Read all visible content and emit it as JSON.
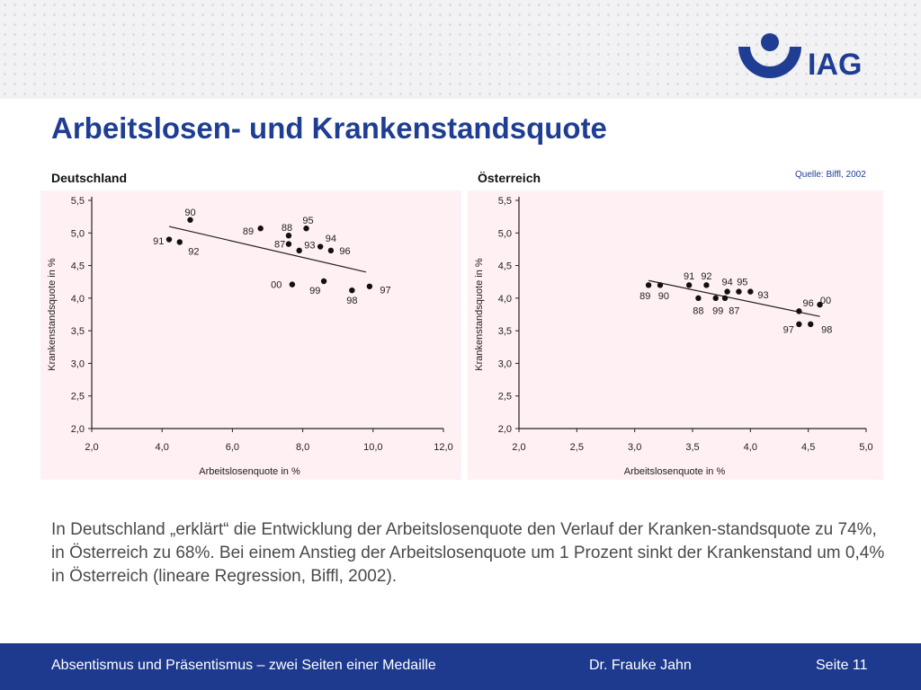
{
  "header": {
    "title": "Arbeitslosen- und Krankenstandsquote",
    "logo_text": "IAG",
    "brand_color": "#1f3e93"
  },
  "source_note": "Quelle: Biffl, 2002",
  "chart_data": [
    {
      "type": "scatter",
      "panel_label": "Deutschland",
      "xlabel": "Arbeitslosenquote in %",
      "ylabel": "Krankenstandsquote in %",
      "xlim": [
        2.0,
        12.0
      ],
      "ylim": [
        2.0,
        5.5
      ],
      "xticks": [
        2.0,
        4.0,
        6.0,
        8.0,
        10.0,
        12.0
      ],
      "xtick_labels": [
        "2,0",
        "4,0",
        "6,0",
        "8,0",
        "10,0",
        "12,0"
      ],
      "yticks": [
        2.0,
        2.5,
        3.0,
        3.5,
        4.0,
        4.5,
        5.0,
        5.5
      ],
      "ytick_labels": [
        "2,0",
        "2,5",
        "3,0",
        "3,5",
        "4,0",
        "4,5",
        "5,0",
        "5,5"
      ],
      "points": [
        {
          "label": "90",
          "x": 4.8,
          "y": 5.2,
          "lx": 0.0,
          "ly": 0.12
        },
        {
          "label": "91",
          "x": 4.2,
          "y": 4.9,
          "lx": -0.3,
          "ly": -0.02
        },
        {
          "label": "92",
          "x": 4.5,
          "y": 4.86,
          "lx": 0.4,
          "ly": -0.14
        },
        {
          "label": "89",
          "x": 6.8,
          "y": 5.07,
          "lx": -0.35,
          "ly": -0.04
        },
        {
          "label": "88",
          "x": 7.6,
          "y": 4.96,
          "lx": -0.05,
          "ly": 0.13
        },
        {
          "label": "87",
          "x": 7.6,
          "y": 4.83,
          "lx": -0.25,
          "ly": 0.0
        },
        {
          "label": "95",
          "x": 8.1,
          "y": 5.07,
          "lx": 0.05,
          "ly": 0.13
        },
        {
          "label": "93",
          "x": 7.9,
          "y": 4.73,
          "lx": 0.3,
          "ly": 0.09
        },
        {
          "label": "94",
          "x": 8.5,
          "y": 4.79,
          "lx": 0.3,
          "ly": 0.13
        },
        {
          "label": "96",
          "x": 8.8,
          "y": 4.73,
          "lx": 0.4,
          "ly": 0.0
        },
        {
          "label": "00",
          "x": 7.7,
          "y": 4.21,
          "lx": -0.45,
          "ly": 0.0
        },
        {
          "label": "99",
          "x": 8.6,
          "y": 4.26,
          "lx": -0.25,
          "ly": -0.14
        },
        {
          "label": "98",
          "x": 9.4,
          "y": 4.12,
          "lx": 0.0,
          "ly": -0.15
        },
        {
          "label": "97",
          "x": 9.9,
          "y": 4.18,
          "lx": 0.45,
          "ly": -0.05
        }
      ],
      "trendline": [
        {
          "x": 4.2,
          "y": 5.1
        },
        {
          "x": 9.8,
          "y": 4.4
        }
      ]
    },
    {
      "type": "scatter",
      "panel_label": "Österreich",
      "xlabel": "Arbeitslosenquote in %",
      "ylabel": "Krankenstandsquote in %",
      "xlim": [
        2.0,
        5.0
      ],
      "ylim": [
        2.0,
        5.5
      ],
      "xticks": [
        2.0,
        2.5,
        3.0,
        3.5,
        4.0,
        4.5,
        5.0
      ],
      "xtick_labels": [
        "2,0",
        "2,5",
        "3,0",
        "3,5",
        "4,0",
        "4,5",
        "5,0"
      ],
      "yticks": [
        2.0,
        2.5,
        3.0,
        3.5,
        4.0,
        4.5,
        5.0,
        5.5
      ],
      "ytick_labels": [
        "2,0",
        "2,5",
        "3,0",
        "3,5",
        "4,0",
        "4,5",
        "5,0",
        "5,5"
      ],
      "points": [
        {
          "label": "89",
          "x": 3.12,
          "y": 4.2,
          "lx": -0.03,
          "ly": -0.16
        },
        {
          "label": "90",
          "x": 3.22,
          "y": 4.2,
          "lx": 0.03,
          "ly": -0.16
        },
        {
          "label": "91",
          "x": 3.47,
          "y": 4.2,
          "lx": 0.0,
          "ly": 0.14
        },
        {
          "label": "92",
          "x": 3.62,
          "y": 4.2,
          "lx": 0.0,
          "ly": 0.14
        },
        {
          "label": "88",
          "x": 3.55,
          "y": 4.0,
          "lx": 0.0,
          "ly": -0.19
        },
        {
          "label": "99",
          "x": 3.7,
          "y": 4.0,
          "lx": 0.02,
          "ly": -0.19
        },
        {
          "label": "87",
          "x": 3.78,
          "y": 4.0,
          "lx": 0.08,
          "ly": -0.19
        },
        {
          "label": "94",
          "x": 3.8,
          "y": 4.1,
          "lx": 0.0,
          "ly": 0.15
        },
        {
          "label": "95",
          "x": 3.9,
          "y": 4.1,
          "lx": 0.03,
          "ly": 0.15
        },
        {
          "label": "93",
          "x": 4.0,
          "y": 4.1,
          "lx": 0.11,
          "ly": -0.05
        },
        {
          "label": "96",
          "x": 4.42,
          "y": 3.8,
          "lx": 0.08,
          "ly": 0.13
        },
        {
          "label": "00",
          "x": 4.6,
          "y": 3.9,
          "lx": 0.05,
          "ly": 0.07
        },
        {
          "label": "97",
          "x": 4.42,
          "y": 3.6,
          "lx": -0.09,
          "ly": -0.08
        },
        {
          "label": "98",
          "x": 4.52,
          "y": 3.6,
          "lx": 0.14,
          "ly": -0.08
        }
      ],
      "trendline": [
        {
          "x": 3.12,
          "y": 4.27
        },
        {
          "x": 4.6,
          "y": 3.72
        }
      ]
    }
  ],
  "body_text": "In Deutschland „erklärt“ die Entwicklung der Arbeitslosenquote den Verlauf der Kranken-standsquote zu 74%, in Österreich zu 68%. Bei einem Anstieg der Arbeitslosenquote um 1 Prozent sinkt der Krankenstand um 0,4% in Österreich (lineare Regression, Biffl, 2002).",
  "footer": {
    "presentation": "Absentismus und Präsentismus – zwei Seiten einer Medaille",
    "author": "Dr. Frauke Jahn",
    "page": "Seite 11"
  }
}
